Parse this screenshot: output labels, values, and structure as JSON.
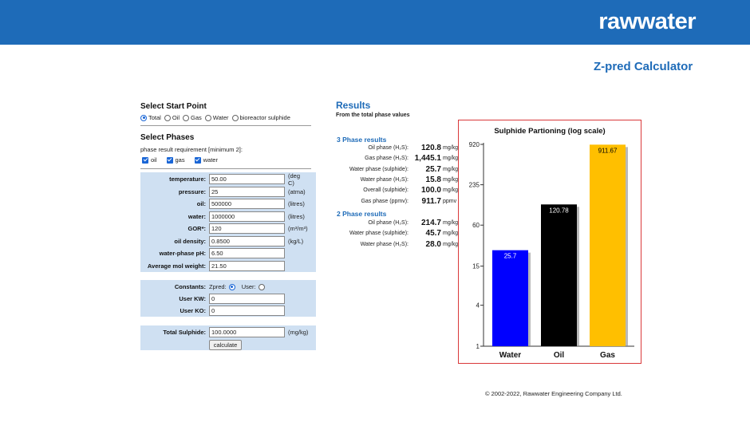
{
  "header": {
    "brand": "rawwater"
  },
  "page_title": "Z-pred Calculator",
  "start_point": {
    "title": "Select Start Point",
    "options": [
      {
        "label": "Total",
        "selected": true
      },
      {
        "label": "Oil",
        "selected": false
      },
      {
        "label": "Gas",
        "selected": false
      },
      {
        "label": "Water",
        "selected": false
      },
      {
        "label": "bioreactor sulphide",
        "selected": false
      }
    ]
  },
  "phases": {
    "title": "Select Phases",
    "requirement": "phase result requirement [minimum 2]:",
    "checks": [
      {
        "label": "oil",
        "checked": true
      },
      {
        "label": "gas",
        "checked": true
      },
      {
        "label": "water",
        "checked": true
      }
    ]
  },
  "inputs": [
    {
      "label": "temperature:",
      "value": "50.00",
      "unit": "(deg C)"
    },
    {
      "label": "pressure:",
      "value": "25",
      "unit": "(atma)"
    },
    {
      "label": "oil:",
      "value": "500000",
      "unit": "(litres)"
    },
    {
      "label": "water:",
      "value": "1000000",
      "unit": "(litres)"
    },
    {
      "label": "GOR*:",
      "value": "120",
      "unit": "(m³/m³)"
    },
    {
      "label": "oil density:",
      "value": "0.8500",
      "unit": "(kg/L)"
    },
    {
      "label": "water-phase pH:",
      "value": "6.50",
      "unit": ""
    },
    {
      "label": "Average mol weight:",
      "value": "21.50",
      "unit": ""
    }
  ],
  "constants": {
    "label": "Constants:",
    "zpred_label": "Zpred:",
    "user_label": "User:",
    "selected": "Zpred",
    "kw_label": "User KW:",
    "kw_value": "0",
    "ko_label": "User KO:",
    "ko_value": "0"
  },
  "total_sulphide": {
    "label": "Total Sulphide:",
    "value": "100.0000",
    "unit": "(mg/kg)"
  },
  "calculate_label": "calculate",
  "results": {
    "title": "Results",
    "subtitle": "From the total phase values",
    "three_phase": {
      "title": "3 Phase results",
      "rows": [
        {
          "label": "Oil phase (H₂S):",
          "value": "120.8",
          "unit": "mg/kg"
        },
        {
          "label": "Gas phase (H₂S):",
          "value": "1,445.1",
          "unit": "mg/kg"
        },
        {
          "label": "Water phase (sulphide):",
          "value": "25.7",
          "unit": "mg/kg"
        },
        {
          "label": "Water phase (H₂S):",
          "value": "15.8",
          "unit": "mg/kg"
        },
        {
          "label": "Overall (sulphide):",
          "value": "100.0",
          "unit": "mg/kg"
        },
        {
          "label": "Gas phase (ppmv):",
          "value": "911.7",
          "unit": "ppmv"
        }
      ]
    },
    "two_phase": {
      "title": "2 Phase results",
      "rows": [
        {
          "label": "Oil phase (H₂S):",
          "value": "214.7",
          "unit": "mg/kg"
        },
        {
          "label": "Water phase (sulphide):",
          "value": "45.7",
          "unit": "mg/kg"
        },
        {
          "label": "Water phase (H₂S):",
          "value": "28.0",
          "unit": "mg/kg"
        }
      ]
    }
  },
  "chart_data": {
    "type": "bar",
    "title": "Sulphide Partioning (log scale)",
    "scale": "log",
    "categories": [
      "Water",
      "Oil",
      "Gas"
    ],
    "values": [
      25.7,
      120.78,
      911.67
    ],
    "value_labels": [
      "25.7",
      "120.78",
      "911.67"
    ],
    "colors": [
      "#0000ff",
      "#000000",
      "#ffbf00"
    ],
    "value_label_colors": [
      "#ffffff",
      "#ffffff",
      "#000000"
    ],
    "yticks": [
      1,
      4,
      15,
      60,
      235,
      920
    ],
    "ylim": [
      1,
      920
    ],
    "grid": false
  },
  "footer": "© 2002-2022, Rawwater Engineering Company Ltd."
}
